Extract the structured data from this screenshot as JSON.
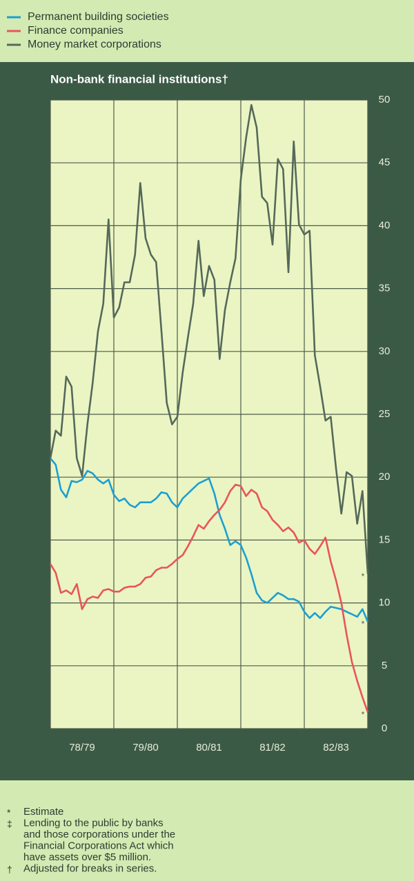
{
  "chart_data": {
    "type": "line",
    "title": "Non-bank financial institutions†",
    "categories": [
      null,
      null,
      null,
      null,
      null,
      null,
      "78/79",
      null,
      null,
      null,
      null,
      null,
      null,
      null,
      null,
      null,
      null,
      null,
      "79/80",
      null,
      null,
      null,
      null,
      null,
      null,
      null,
      null,
      null,
      null,
      null,
      "80/81",
      null,
      null,
      null,
      null,
      null,
      null,
      null,
      null,
      null,
      null,
      null,
      "81/82",
      null,
      null,
      null,
      null,
      null,
      null,
      null,
      null,
      null,
      null,
      null,
      "82/83",
      null,
      null,
      null,
      null,
      null,
      null
    ],
    "series": [
      {
        "name": "Permanent building societies",
        "color": "#1b9fd2",
        "end_label": "*",
        "values": [
          21.5,
          21,
          19,
          18.4,
          19.7,
          19.6,
          19.8,
          20.5,
          20.3,
          19.8,
          19.5,
          19.8,
          18.6,
          18.1,
          18.3,
          17.8,
          17.6,
          18,
          18,
          18,
          18.3,
          18.8,
          18.7,
          18,
          17.6,
          18.3,
          18.7,
          19.1,
          19.5,
          19.7,
          19.9,
          18.7,
          17,
          15.9,
          14.6,
          14.9,
          14.6,
          13.6,
          12.3,
          10.8,
          10.2,
          10,
          10.4,
          10.8,
          10.6,
          10.3,
          10.3,
          10.1,
          9.3,
          8.8,
          9.2,
          8.8,
          9.3,
          9.7,
          9.6,
          9.5,
          9.3,
          9.1,
          8.9,
          9.5,
          8.5
        ]
      },
      {
        "name": "Finance companies",
        "color": "#e8545a",
        "end_label": "*",
        "values": [
          13.1,
          12.4,
          10.8,
          11,
          10.7,
          11.5,
          9.5,
          10.3,
          10.5,
          10.4,
          11,
          11.1,
          10.9,
          10.9,
          11.2,
          11.3,
          11.3,
          11.5,
          12,
          12.1,
          12.6,
          12.8,
          12.8,
          13.1,
          13.5,
          13.8,
          14.5,
          15.3,
          16.2,
          15.9,
          16.5,
          17,
          17.4,
          18,
          18.9,
          19.4,
          19.3,
          18.5,
          19,
          18.7,
          17.6,
          17.3,
          16.6,
          16.2,
          15.7,
          16,
          15.6,
          14.8,
          15,
          14.3,
          13.9,
          14.5,
          15.2,
          13.3,
          11.8,
          10,
          7.5,
          5.3,
          3.8,
          2.5,
          1.3
        ]
      },
      {
        "name": "Money market corporations",
        "color": "#55685a",
        "end_label": "*",
        "values": [
          21.5,
          23.7,
          23.3,
          28,
          27.2,
          21.5,
          20.1,
          24.2,
          27.5,
          31.6,
          33.8,
          40.5,
          32.7,
          33.5,
          35.5,
          35.5,
          37.7,
          43.4,
          39,
          37.7,
          37.1,
          31.6,
          25.9,
          24.2,
          24.8,
          28.3,
          31.1,
          33.8,
          38.8,
          34.4,
          36.8,
          35.7,
          29.4,
          33.3,
          35.5,
          37.4,
          43.7,
          47,
          49.6,
          47.8,
          42.3,
          41.8,
          38.5,
          45.3,
          44.5,
          36.3,
          46.7,
          40.1,
          39.3,
          39.6,
          29.7,
          27.2,
          24.5,
          24.8,
          20.7,
          17.1,
          20.4,
          20.1,
          16.3,
          18.9,
          12.3
        ]
      }
    ],
    "ylim": [
      0,
      50
    ],
    "yticks": [
      0,
      5,
      10,
      15,
      20,
      25,
      30,
      35,
      40,
      45,
      50
    ],
    "grid": true
  },
  "notes": [
    {
      "symbol": "*",
      "lines": [
        "Estimate"
      ]
    },
    {
      "symbol": "‡",
      "lines": [
        "Lending to the public by banks",
        "and those corporations under the",
        "Financial Corporations Act which",
        "have assets over $5 million."
      ]
    },
    {
      "symbol": "†",
      "lines": [
        "Adjusted for breaks in series."
      ]
    }
  ]
}
